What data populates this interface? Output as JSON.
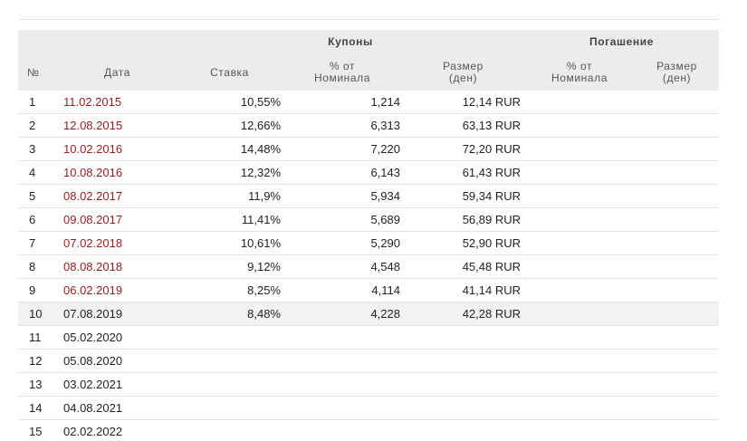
{
  "header": {
    "group_coupons": "Купоны",
    "group_redemption": "Погашение",
    "col_num": "№",
    "col_date": "Дата",
    "col_rate": "Ставка",
    "col_pct_nominal_l1": "% от",
    "col_pct_nominal_l2": "Номинала",
    "col_size_l1": "Размер",
    "col_size_l2": "(ден)",
    "col_red_pct_l1": "% от",
    "col_red_pct_l2": "Номинала",
    "col_red_size_l1": "Размер",
    "col_red_size_l2": "(ден)"
  },
  "rows": [
    {
      "num": "1",
      "date": "11.02.2015",
      "rate": "10,55%",
      "pct": "1,214",
      "size": "12,14 RUR",
      "paid": true
    },
    {
      "num": "2",
      "date": "12.08.2015",
      "rate": "12,66%",
      "pct": "6,313",
      "size": "63,13 RUR",
      "paid": true
    },
    {
      "num": "3",
      "date": "10.02.2016",
      "rate": "14,48%",
      "pct": "7,220",
      "size": "72,20 RUR",
      "paid": true
    },
    {
      "num": "4",
      "date": "10.08.2016",
      "rate": "12,32%",
      "pct": "6,143",
      "size": "61,43 RUR",
      "paid": true
    },
    {
      "num": "5",
      "date": "08.02.2017",
      "rate": "11,9%",
      "pct": "5,934",
      "size": "59,34 RUR",
      "paid": true
    },
    {
      "num": "6",
      "date": "09.08.2017",
      "rate": "11,41%",
      "pct": "5,689",
      "size": "56,89 RUR",
      "paid": true
    },
    {
      "num": "7",
      "date": "07.02.2018",
      "rate": "10,61%",
      "pct": "5,290",
      "size": "52,90 RUR",
      "paid": true
    },
    {
      "num": "8",
      "date": "08.08.2018",
      "rate": "9,12%",
      "pct": "4,548",
      "size": "45,48 RUR",
      "paid": true
    },
    {
      "num": "9",
      "date": "06.02.2019",
      "rate": "8,25%",
      "pct": "4,114",
      "size": "41,14 RUR",
      "paid": true
    },
    {
      "num": "10",
      "date": "07.08.2019",
      "rate": "8,48%",
      "pct": "4,228",
      "size": "42,28 RUR",
      "paid": false,
      "highlight": true
    },
    {
      "num": "11",
      "date": "05.02.2020",
      "rate": "",
      "pct": "",
      "size": "",
      "paid": false
    },
    {
      "num": "12",
      "date": "05.08.2020",
      "rate": "",
      "pct": "",
      "size": "",
      "paid": false
    },
    {
      "num": "13",
      "date": "03.02.2021",
      "rate": "",
      "pct": "",
      "size": "",
      "paid": false
    },
    {
      "num": "14",
      "date": "04.08.2021",
      "rate": "",
      "pct": "",
      "size": "",
      "paid": false
    },
    {
      "num": "15",
      "date": "02.02.2022",
      "rate": "",
      "pct": "",
      "size": "",
      "paid": false
    }
  ],
  "colors": {
    "paid_date": "#9b1c1c",
    "header_bg": "#ececec",
    "highlight_row": "#f2f2f2"
  }
}
